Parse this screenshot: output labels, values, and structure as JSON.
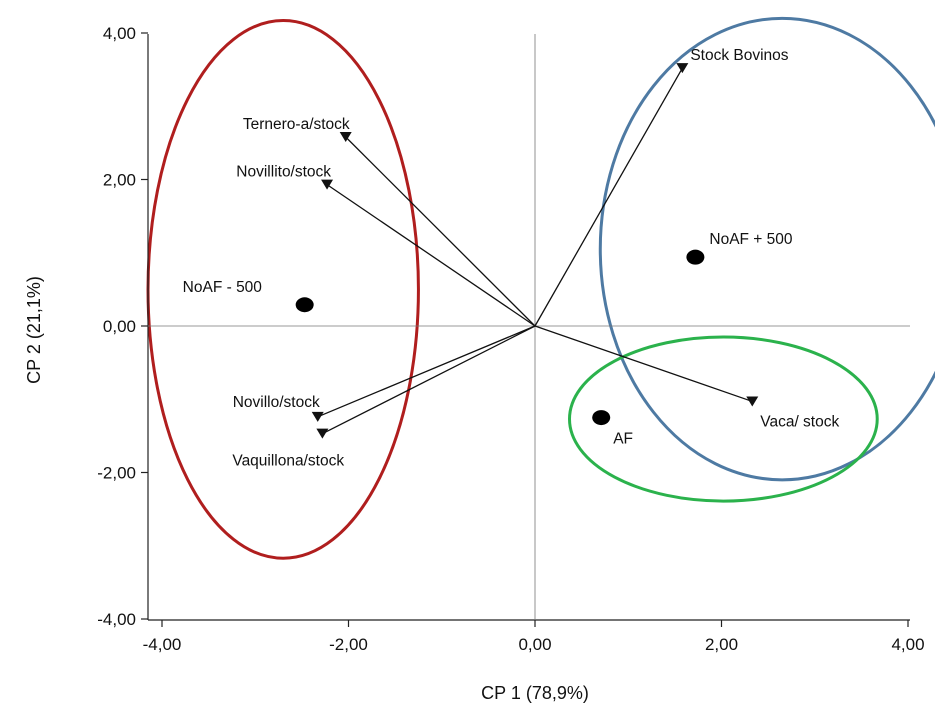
{
  "chart_data": {
    "type": "scatter",
    "subtype": "biplot",
    "title": "",
    "xlabel": "CP 1 (78,9%)",
    "ylabel": "CP 2 (21,1%)",
    "xlim": [
      -4,
      4
    ],
    "ylim": [
      -4,
      4.2
    ],
    "x_ticks": [
      -4,
      -2,
      0,
      2,
      4
    ],
    "x_tick_labels": [
      "-4,00",
      "-2,00",
      "0,00",
      "2,00",
      "4,00"
    ],
    "y_ticks": [
      -4,
      -2,
      0,
      2,
      4
    ],
    "y_tick_labels": [
      "-4,00",
      "-2,00",
      "0,00",
      "2,00",
      "4,00"
    ],
    "grid": false,
    "reference_lines": [
      "x=0",
      "y=0"
    ],
    "points": [
      {
        "label": "NoAF - 500",
        "x": -2.47,
        "y": 0.29
      },
      {
        "label": "NoAF + 500",
        "x": 1.72,
        "y": 0.94
      },
      {
        "label": "AF",
        "x": 0.71,
        "y": -1.25
      }
    ],
    "vectors": [
      {
        "label": "Stock Bovinos",
        "x": 1.58,
        "y": 3.52
      },
      {
        "label": "Ternero-a/stock",
        "x": -2.03,
        "y": 2.58
      },
      {
        "label": "Novillito/stock",
        "x": -2.23,
        "y": 1.93
      },
      {
        "label": "Novillo/stock",
        "x": -2.33,
        "y": -1.24
      },
      {
        "label": "Vaquillona/stock",
        "x": -2.28,
        "y": -1.47
      },
      {
        "label": "Vaca/ stock",
        "x": 2.33,
        "y": -1.03
      }
    ],
    "ellipses": [
      {
        "cx": -2.7,
        "cy": 0.5,
        "rx": 1.45,
        "ry": 3.67,
        "color": "#b01e1e"
      },
      {
        "cx": 2.65,
        "cy": 1.05,
        "rx": 1.95,
        "ry": 3.15,
        "color": "#4e7aa3"
      },
      {
        "cx": 2.02,
        "cy": -1.27,
        "rx": 1.65,
        "ry": 1.12,
        "color": "#2bb24c"
      }
    ]
  }
}
